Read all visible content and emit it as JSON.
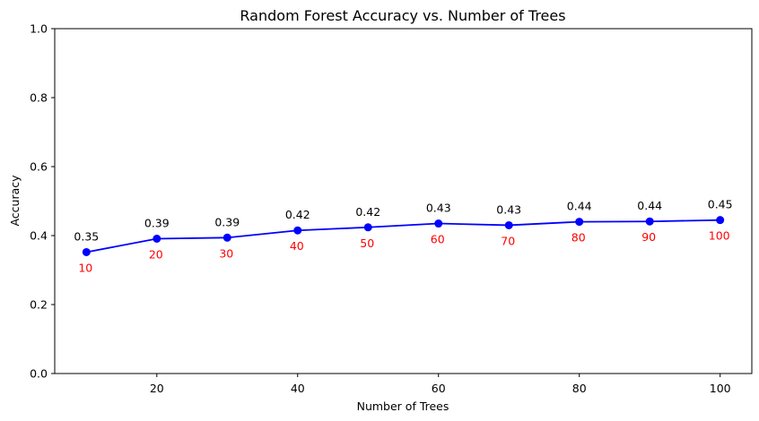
{
  "chart_data": {
    "type": "line",
    "title": "Random Forest Accuracy vs. Number of Trees",
    "xlabel": "Number of Trees",
    "ylabel": "Accuracy",
    "x": [
      10,
      20,
      30,
      40,
      50,
      60,
      70,
      80,
      90,
      100
    ],
    "series": [
      {
        "values": [
          0.352,
          0.391,
          0.394,
          0.415,
          0.424,
          0.435,
          0.43,
          0.44,
          0.441,
          0.445
        ],
        "color": "#0000ff",
        "marker": "circle",
        "value_labels": [
          "0.35",
          "0.39",
          "0.39",
          "0.42",
          "0.42",
          "0.43",
          "0.43",
          "0.44",
          "0.44",
          "0.45"
        ]
      }
    ],
    "x_annotations": [
      "10",
      "20",
      "30",
      "40",
      "50",
      "60",
      "70",
      "80",
      "90",
      "100"
    ],
    "x_annotation_color": "#ff0000",
    "xlim": [
      5.5,
      104.5
    ],
    "ylim": [
      0,
      1.0
    ],
    "xticks": [
      20,
      40,
      60,
      80,
      100
    ],
    "xtick_labels": [
      "20",
      "40",
      "60",
      "80",
      "100"
    ],
    "yticks": [
      0,
      0.2,
      0.4,
      0.6,
      0.8,
      1.0
    ],
    "ytick_labels": [
      "0.0",
      "0.2",
      "0.4",
      "0.6",
      "0.8",
      "1.0"
    ],
    "grid": false,
    "legend": "none"
  }
}
